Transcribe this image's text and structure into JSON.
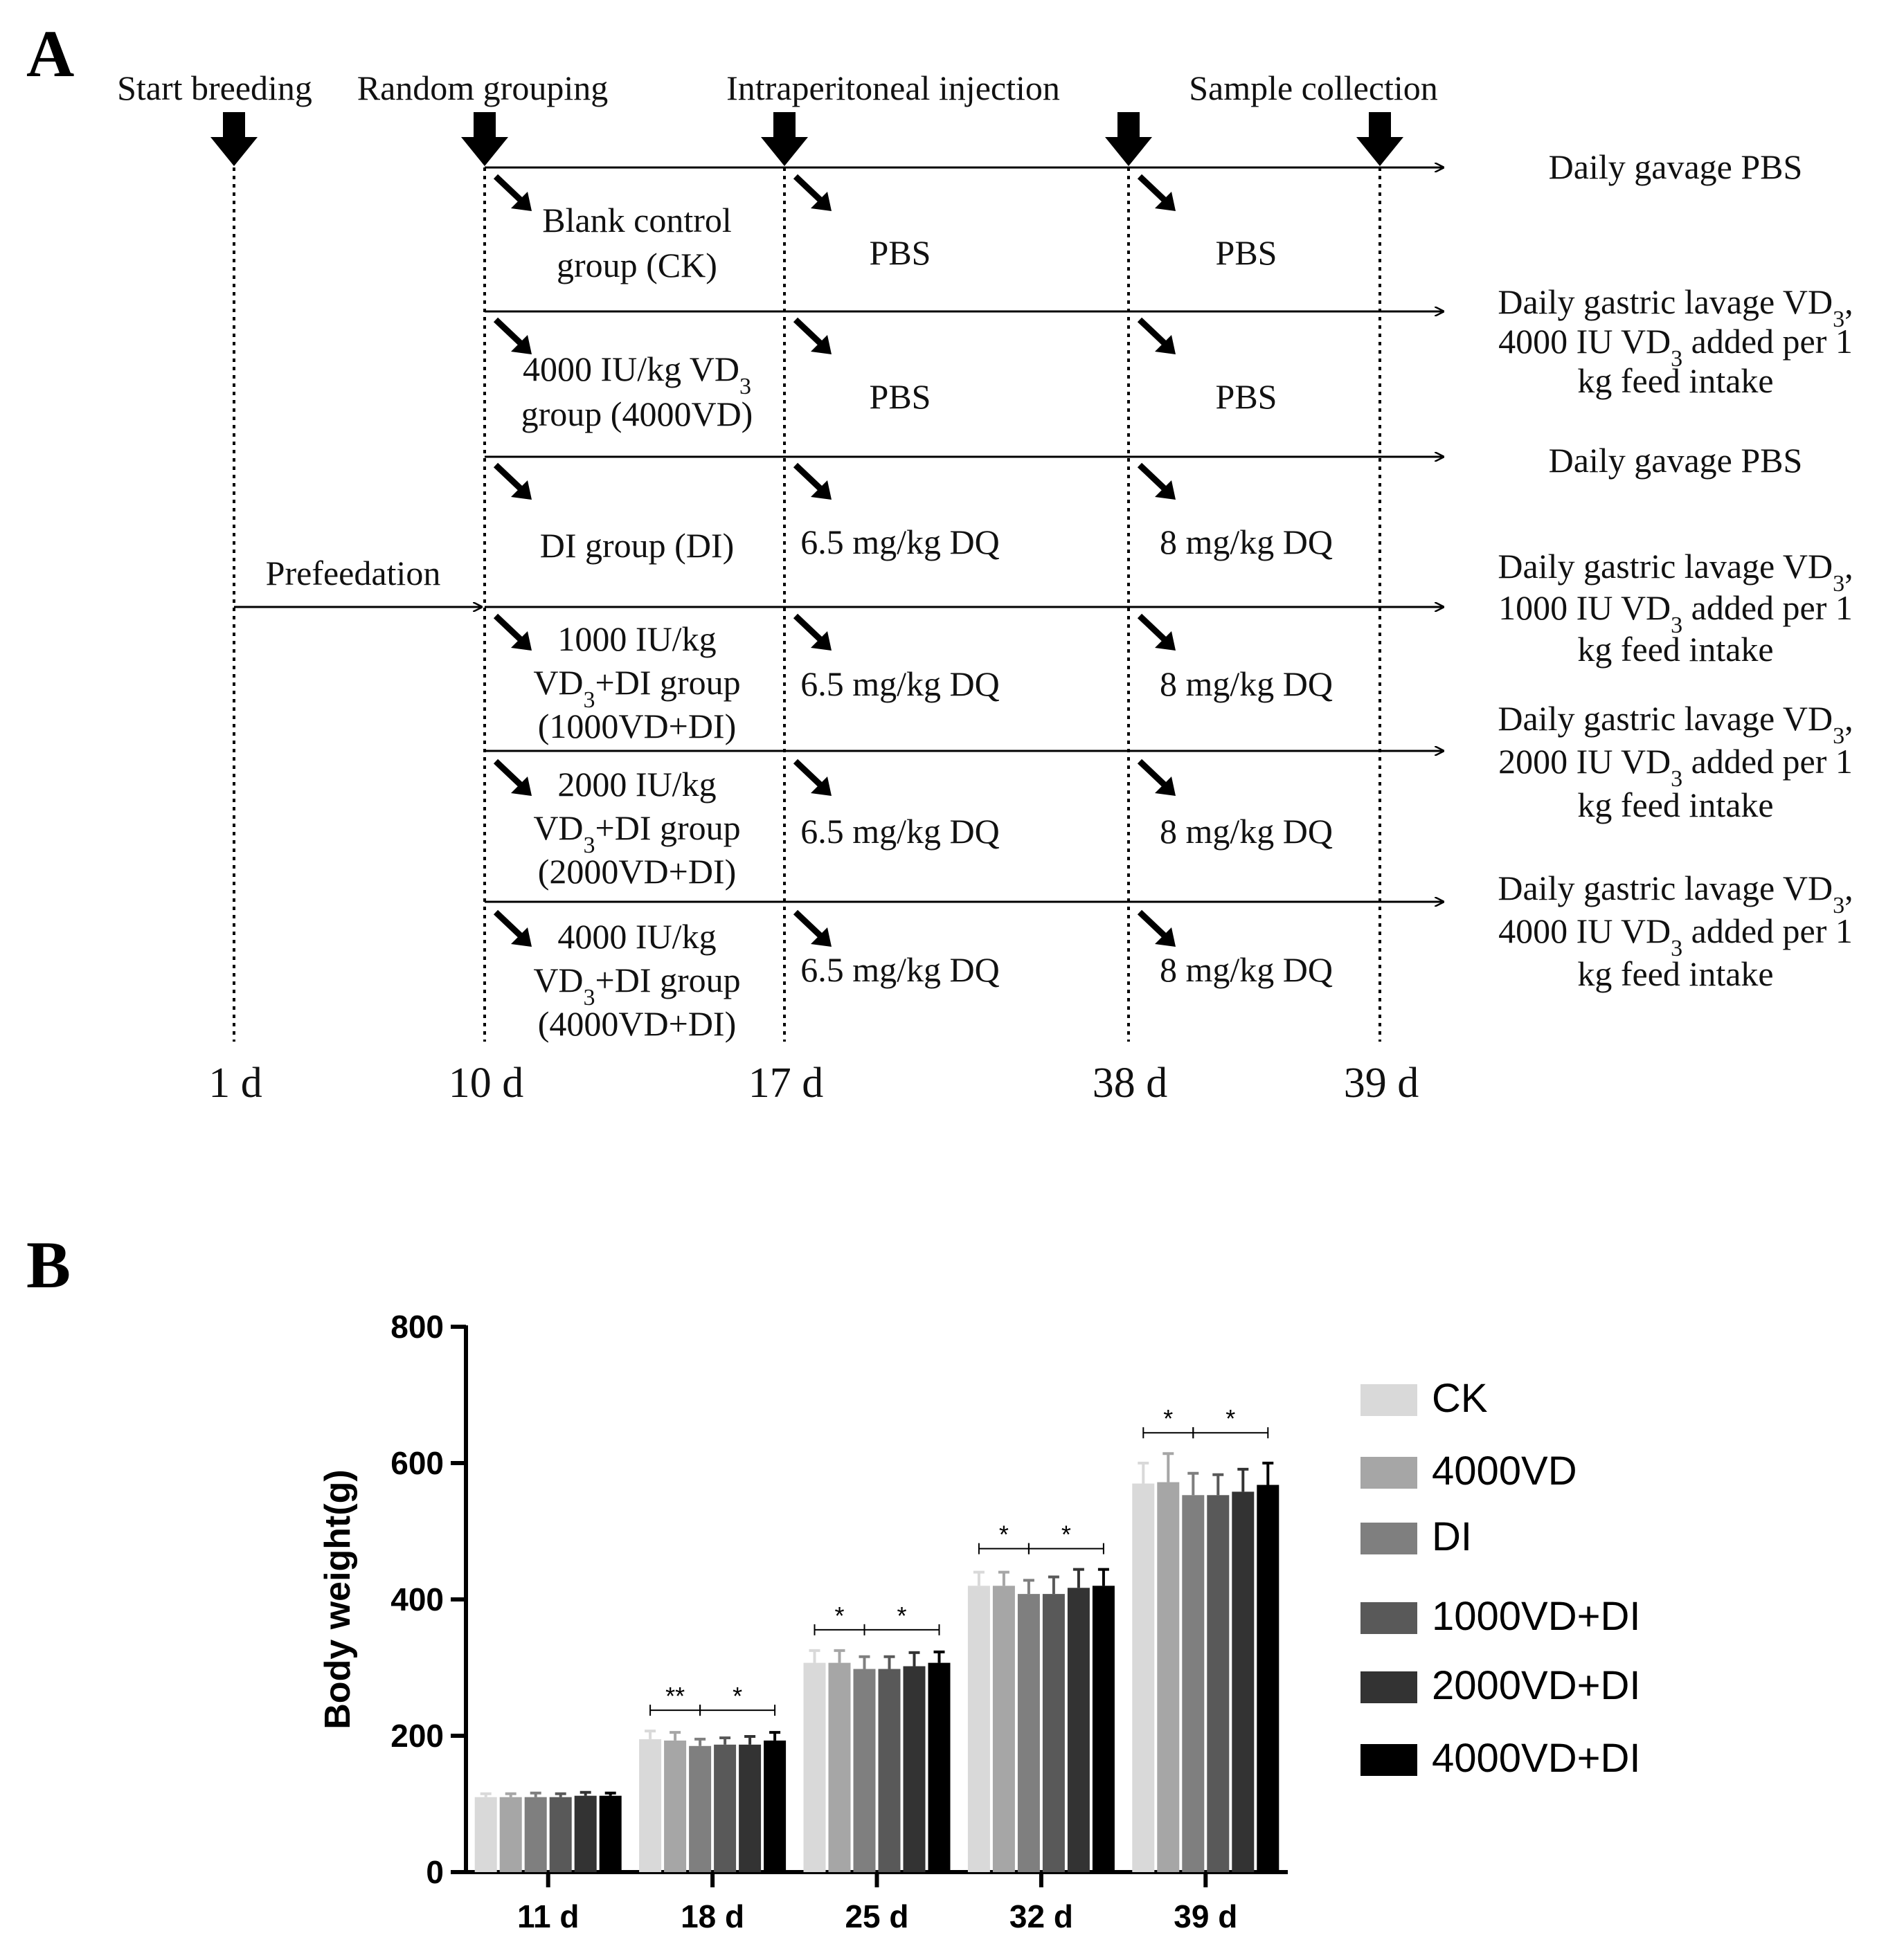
{
  "panel_a": {
    "letter": "A",
    "headers": {
      "start_breeding": "Start breeding",
      "random_grouping": "Random grouping",
      "intraperitoneal_injection": "Intraperitoneal injection",
      "sample_collection": "Sample collection"
    },
    "prefeedation": "Prefeedation",
    "days": [
      "1 d",
      "10 d",
      "17 d",
      "38 d",
      "39 d"
    ],
    "groups": [
      {
        "name_lines": [
          "Blank control",
          "group (CK)"
        ],
        "injection1": "PBS",
        "injection2": "PBS",
        "gavage_lines": [
          "Daily gavage PBS"
        ]
      },
      {
        "name_lines": [
          "4000 IU/kg VD3",
          "group (4000VD)"
        ],
        "injection1": "PBS",
        "injection2": "PBS",
        "gavage_lines": [
          "Daily gastric lavage VD3,",
          "4000 IU VD3 added per 1",
          "kg feed intake"
        ]
      },
      {
        "name_lines": [
          "DI group (DI)"
        ],
        "injection1": "6.5 mg/kg DQ",
        "injection2": "8 mg/kg DQ",
        "gavage_lines": [
          "Daily gavage PBS"
        ]
      },
      {
        "name_lines": [
          "1000 IU/kg",
          "VD3+DI group",
          "(1000VD+DI)"
        ],
        "injection1": "6.5 mg/kg DQ",
        "injection2": "8 mg/kg DQ",
        "gavage_lines": [
          "Daily gastric lavage VD3,",
          "1000 IU VD3 added per 1",
          "kg feed intake"
        ]
      },
      {
        "name_lines": [
          "2000 IU/kg",
          "VD3+DI group",
          "(2000VD+DI)"
        ],
        "injection1": "6.5 mg/kg DQ",
        "injection2": "8 mg/kg DQ",
        "gavage_lines": [
          "Daily gastric lavage VD3,",
          "2000 IU VD3 added per 1",
          "kg feed intake"
        ]
      },
      {
        "name_lines": [
          "4000 IU/kg",
          "VD3+DI group",
          "(4000VD+DI)"
        ],
        "injection1": "6.5 mg/kg DQ",
        "injection2": "8 mg/kg DQ",
        "gavage_lines": [
          "Daily gastric lavage VD3,",
          "4000 IU VD3 added per 1",
          "kg feed intake"
        ]
      }
    ]
  },
  "panel_b": {
    "letter": "B"
  },
  "chart_data": {
    "type": "bar",
    "ylabel": "Body weight(g)",
    "xlabel": "",
    "ylim": [
      0,
      800
    ],
    "yticks": [
      0,
      200,
      400,
      600,
      800
    ],
    "categories": [
      "11 d",
      "18 d",
      "25 d",
      "32 d",
      "39 d"
    ],
    "legend_position": "right",
    "series": [
      {
        "name": "CK",
        "color": "#d9d9d9",
        "values": [
          110,
          195,
          307,
          420,
          570
        ],
        "errors": [
          5,
          12,
          18,
          20,
          30
        ]
      },
      {
        "name": "4000VD",
        "color": "#a6a6a6",
        "values": [
          110,
          193,
          307,
          420,
          572
        ],
        "errors": [
          5,
          12,
          18,
          20,
          42
        ]
      },
      {
        "name": "DI",
        "color": "#7f7f7f",
        "values": [
          110,
          185,
          298,
          408,
          553
        ],
        "errors": [
          6,
          10,
          18,
          20,
          32
        ]
      },
      {
        "name": "1000VD+DI",
        "color": "#595959",
        "values": [
          110,
          187,
          298,
          408,
          553
        ],
        "errors": [
          5,
          10,
          18,
          25,
          30
        ]
      },
      {
        "name": "2000VD+DI",
        "color": "#333333",
        "values": [
          112,
          187,
          302,
          417,
          558
        ],
        "errors": [
          5,
          12,
          20,
          27,
          33
        ]
      },
      {
        "name": "4000VD+DI",
        "color": "#000000",
        "values": [
          112,
          193,
          307,
          420,
          568
        ],
        "errors": [
          4,
          12,
          16,
          24,
          32
        ]
      }
    ],
    "significance": [
      {
        "category": "18 d",
        "from_series": 0,
        "to_series": 2,
        "label": "**"
      },
      {
        "category": "18 d",
        "from_series": 2,
        "to_series": 5,
        "label": "*"
      },
      {
        "category": "25 d",
        "from_series": 0,
        "to_series": 2,
        "label": "*"
      },
      {
        "category": "25 d",
        "from_series": 2,
        "to_series": 5,
        "label": "*"
      },
      {
        "category": "32 d",
        "from_series": 0,
        "to_series": 2,
        "label": "*"
      },
      {
        "category": "32 d",
        "from_series": 2,
        "to_series": 5,
        "label": "*"
      },
      {
        "category": "39 d",
        "from_series": 0,
        "to_series": 2,
        "label": "*"
      },
      {
        "category": "39 d",
        "from_series": 2,
        "to_series": 5,
        "label": "*"
      }
    ]
  }
}
